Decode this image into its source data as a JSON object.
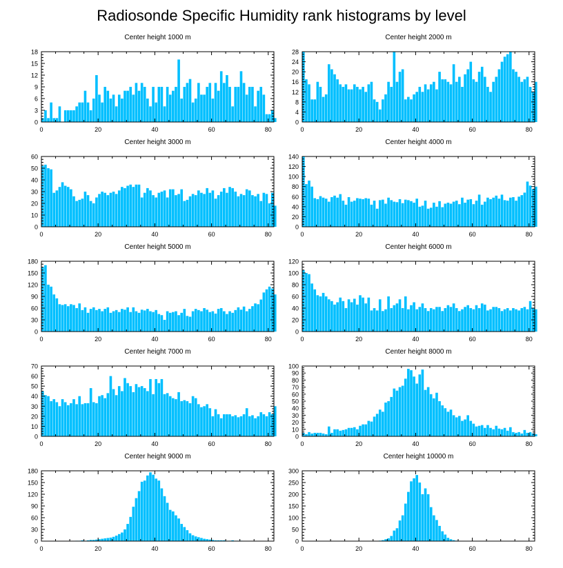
{
  "title": "Radiosonde Specific Humidity rank histograms by level",
  "bar_color": "#00bfff",
  "axis_color": "#000000",
  "chart_data": [
    {
      "type": "bar",
      "title": "Center height 1000 m",
      "x_start": 0,
      "xlim": [
        0,
        82
      ],
      "xticks": [
        0,
        20,
        40,
        60,
        80
      ],
      "ylim": [
        0,
        18
      ],
      "yticks": [
        0,
        3,
        6,
        9,
        12,
        15,
        18
      ],
      "values": [
        1,
        3,
        1,
        5,
        1,
        1,
        4,
        0,
        3,
        3,
        3,
        3,
        4,
        5,
        5,
        8,
        5,
        3,
        6,
        12,
        7,
        5,
        9,
        8,
        6,
        7,
        4,
        7,
        6,
        8,
        8,
        9,
        7,
        10,
        8,
        10,
        9,
        6,
        4,
        9,
        5,
        9,
        9,
        4,
        9,
        7,
        8,
        9,
        16,
        6,
        9,
        10,
        11,
        5,
        6,
        10,
        7,
        7,
        9,
        10,
        6,
        10,
        8,
        13,
        10,
        12,
        9,
        4,
        9,
        9,
        13,
        10,
        7,
        9,
        9,
        4,
        8,
        9,
        7,
        2,
        2,
        3,
        1
      ]
    },
    {
      "type": "bar",
      "title": "Center height 2000 m",
      "x_start": 0,
      "xlim": [
        0,
        82
      ],
      "xticks": [
        0,
        20,
        40,
        60,
        80
      ],
      "ylim": [
        0,
        28
      ],
      "yticks": [
        0,
        4,
        8,
        12,
        16,
        20,
        24,
        28
      ],
      "values": [
        28,
        17,
        15,
        9,
        9,
        16,
        14,
        10,
        11,
        23,
        21,
        19,
        17,
        15,
        14,
        15,
        13,
        13,
        15,
        14,
        13,
        14,
        12,
        15,
        16,
        9,
        8,
        5,
        9,
        11,
        16,
        14,
        28,
        16,
        20,
        21,
        9,
        10,
        9,
        11,
        12,
        14,
        12,
        15,
        13,
        15,
        16,
        13,
        20,
        17,
        17,
        16,
        15,
        23,
        16,
        18,
        14,
        19,
        21,
        24,
        17,
        16,
        20,
        22,
        18,
        14,
        12,
        16,
        18,
        21,
        24,
        26,
        27,
        28,
        21,
        20,
        18,
        16,
        17,
        18,
        14,
        12,
        16
      ]
    },
    {
      "type": "bar",
      "title": "Center height 3000 m",
      "x_start": 0,
      "xlim": [
        0,
        82
      ],
      "xticks": [
        0,
        20,
        40,
        60,
        80
      ],
      "ylim": [
        0,
        60
      ],
      "yticks": [
        0,
        10,
        20,
        30,
        40,
        50,
        60
      ],
      "values": [
        52,
        53,
        50,
        49,
        29,
        31,
        34,
        38,
        35,
        34,
        32,
        26,
        22,
        23,
        24,
        30,
        27,
        22,
        20,
        25,
        28,
        30,
        29,
        27,
        29,
        30,
        28,
        31,
        34,
        33,
        35,
        36,
        34,
        36,
        36,
        25,
        29,
        33,
        31,
        27,
        25,
        29,
        30,
        31,
        25,
        32,
        32,
        27,
        28,
        32,
        22,
        23,
        26,
        28,
        27,
        31,
        29,
        28,
        33,
        29,
        31,
        24,
        27,
        30,
        33,
        29,
        34,
        33,
        30,
        26,
        28,
        27,
        32,
        31,
        27,
        26,
        28,
        22,
        29,
        28,
        20,
        29,
        18
      ]
    },
    {
      "type": "bar",
      "title": "Center height 4000 m",
      "x_start": 0,
      "xlim": [
        0,
        82
      ],
      "xticks": [
        0,
        20,
        40,
        60,
        80
      ],
      "ylim": [
        0,
        140
      ],
      "yticks": [
        0,
        20,
        40,
        60,
        80,
        100,
        120,
        140
      ],
      "values": [
        140,
        85,
        92,
        80,
        57,
        55,
        61,
        58,
        56,
        50,
        59,
        62,
        58,
        65,
        52,
        44,
        59,
        50,
        52,
        57,
        56,
        55,
        57,
        56,
        44,
        52,
        36,
        53,
        54,
        46,
        58,
        53,
        50,
        49,
        55,
        47,
        54,
        53,
        51,
        48,
        56,
        40,
        42,
        52,
        36,
        38,
        48,
        40,
        51,
        39,
        46,
        48,
        46,
        50,
        52,
        45,
        58,
        48,
        54,
        55,
        45,
        52,
        64,
        44,
        50,
        58,
        55,
        58,
        62,
        56,
        64,
        53,
        52,
        58,
        59,
        52,
        60,
        63,
        68,
        90,
        82,
        75,
        80
      ]
    },
    {
      "type": "bar",
      "title": "Center height 5000 m",
      "x_start": 0,
      "xlim": [
        0,
        82
      ],
      "xticks": [
        0,
        20,
        40,
        60,
        80
      ],
      "ylim": [
        0,
        180
      ],
      "yticks": [
        0,
        30,
        60,
        90,
        120,
        150,
        180
      ],
      "values": [
        165,
        170,
        120,
        115,
        95,
        85,
        70,
        68,
        70,
        65,
        70,
        68,
        60,
        72,
        55,
        62,
        48,
        58,
        62,
        55,
        58,
        52,
        58,
        62,
        48,
        52,
        55,
        50,
        58,
        56,
        62,
        50,
        62,
        52,
        48,
        56,
        54,
        58,
        52,
        50,
        55,
        45,
        42,
        30,
        52,
        48,
        50,
        52,
        42,
        48,
        58,
        40,
        38,
        52,
        58,
        55,
        52,
        60,
        56,
        50,
        52,
        46,
        58,
        60,
        52,
        45,
        52,
        48,
        55,
        62,
        56,
        64,
        52,
        58,
        65,
        72,
        70,
        82,
        100,
        108,
        115,
        110,
        95
      ]
    },
    {
      "type": "bar",
      "title": "Center height 6000 m",
      "x_start": 0,
      "xlim": [
        0,
        82
      ],
      "xticks": [
        0,
        20,
        40,
        60,
        80
      ],
      "ylim": [
        0,
        120
      ],
      "yticks": [
        0,
        20,
        40,
        60,
        80,
        100,
        120
      ],
      "values": [
        105,
        100,
        98,
        82,
        72,
        62,
        60,
        66,
        60,
        55,
        52,
        46,
        50,
        58,
        52,
        40,
        55,
        50,
        56,
        46,
        62,
        58,
        48,
        58,
        36,
        40,
        36,
        55,
        35,
        38,
        60,
        40,
        45,
        48,
        55,
        40,
        60,
        38,
        45,
        50,
        38,
        42,
        48,
        40,
        35,
        40,
        38,
        42,
        42,
        35,
        40,
        45,
        42,
        48,
        40,
        35,
        38,
        42,
        45,
        40,
        38,
        45,
        40,
        48,
        46,
        36,
        38,
        42,
        42,
        40,
        35,
        38,
        40,
        36,
        40,
        38,
        36,
        40,
        42,
        38,
        52,
        40,
        38
      ]
    },
    {
      "type": "bar",
      "title": "Center height 7000 m",
      "x_start": 0,
      "xlim": [
        0,
        82
      ],
      "xticks": [
        0,
        20,
        40,
        60,
        80
      ],
      "ylim": [
        0,
        70
      ],
      "yticks": [
        0,
        10,
        20,
        30,
        40,
        50,
        60,
        70
      ],
      "values": [
        45,
        41,
        40,
        35,
        37,
        34,
        30,
        37,
        34,
        31,
        33,
        37,
        32,
        40,
        32,
        33,
        33,
        48,
        34,
        33,
        40,
        41,
        38,
        43,
        60,
        47,
        41,
        50,
        45,
        58,
        53,
        50,
        44,
        52,
        49,
        50,
        48,
        45,
        57,
        42,
        57,
        53,
        57,
        42,
        43,
        40,
        38,
        37,
        44,
        35,
        36,
        35,
        33,
        40,
        38,
        32,
        29,
        30,
        32,
        28,
        20,
        27,
        22,
        18,
        22,
        22,
        22,
        20,
        21,
        19,
        20,
        22,
        28,
        20,
        21,
        18,
        20,
        24,
        22,
        20,
        24,
        22,
        30
      ]
    },
    {
      "type": "bar",
      "title": "Center height 8000 m",
      "x_start": 0,
      "xlim": [
        0,
        82
      ],
      "xticks": [
        0,
        20,
        40,
        60,
        80
      ],
      "ylim": [
        0,
        100
      ],
      "yticks": [
        0,
        10,
        20,
        30,
        40,
        50,
        60,
        70,
        80,
        90,
        100
      ],
      "values": [
        5,
        3,
        6,
        4,
        5,
        5,
        5,
        4,
        3,
        14,
        5,
        10,
        10,
        8,
        9,
        10,
        12,
        12,
        13,
        10,
        15,
        17,
        17,
        22,
        21,
        28,
        32,
        38,
        35,
        48,
        50,
        56,
        68,
        65,
        70,
        72,
        82,
        96,
        94,
        85,
        75,
        88,
        95,
        66,
        70,
        60,
        54,
        62,
        50,
        44,
        40,
        35,
        38,
        30,
        27,
        29,
        22,
        24,
        30,
        22,
        18,
        14,
        15,
        16,
        12,
        16,
        12,
        10,
        15,
        11,
        10,
        12,
        8,
        13,
        6,
        5,
        6,
        4,
        9,
        5,
        6,
        4,
        3
      ]
    },
    {
      "type": "bar",
      "title": "Center height 9000 m",
      "x_start": 0,
      "xlim": [
        0,
        82
      ],
      "xticks": [
        0,
        20,
        40,
        60,
        80
      ],
      "ylim": [
        0,
        180
      ],
      "yticks": [
        0,
        30,
        60,
        90,
        120,
        150,
        180
      ],
      "values": [
        0,
        0,
        0,
        0,
        0,
        0,
        0,
        0,
        0,
        0,
        0,
        0,
        1,
        1,
        2,
        1,
        2,
        3,
        3,
        4,
        5,
        6,
        7,
        8,
        9,
        11,
        14,
        18,
        22,
        30,
        44,
        62,
        88,
        110,
        128,
        152,
        155,
        168,
        176,
        170,
        160,
        155,
        135,
        115,
        98,
        80,
        76,
        66,
        58,
        44,
        36,
        28,
        20,
        15,
        12,
        10,
        8,
        6,
        5,
        4,
        3,
        2,
        2,
        2,
        2,
        1,
        1,
        2,
        1,
        1,
        1,
        0,
        0,
        0,
        0,
        0,
        0,
        0,
        0,
        0,
        0,
        0,
        0
      ]
    },
    {
      "type": "bar",
      "title": "Center height 10000 m",
      "x_start": 0,
      "xlim": [
        0,
        82
      ],
      "xticks": [
        0,
        20,
        40,
        60,
        80
      ],
      "ylim": [
        0,
        300
      ],
      "yticks": [
        0,
        50,
        100,
        150,
        200,
        250,
        300
      ],
      "values": [
        0,
        0,
        0,
        0,
        0,
        0,
        0,
        0,
        0,
        0,
        0,
        0,
        0,
        0,
        0,
        0,
        0,
        0,
        0,
        0,
        0,
        0,
        0,
        0,
        0,
        0,
        1,
        2,
        4,
        8,
        12,
        22,
        45,
        55,
        88,
        110,
        160,
        210,
        255,
        268,
        282,
        250,
        200,
        225,
        200,
        145,
        110,
        90,
        65,
        42,
        28,
        14,
        8,
        4,
        2,
        1,
        0,
        0,
        0,
        0,
        0,
        0,
        0,
        0,
        0,
        0,
        0,
        0,
        0,
        0,
        0,
        0,
        0,
        0,
        0,
        0,
        0,
        0,
        0,
        0,
        0,
        0,
        0
      ]
    }
  ]
}
